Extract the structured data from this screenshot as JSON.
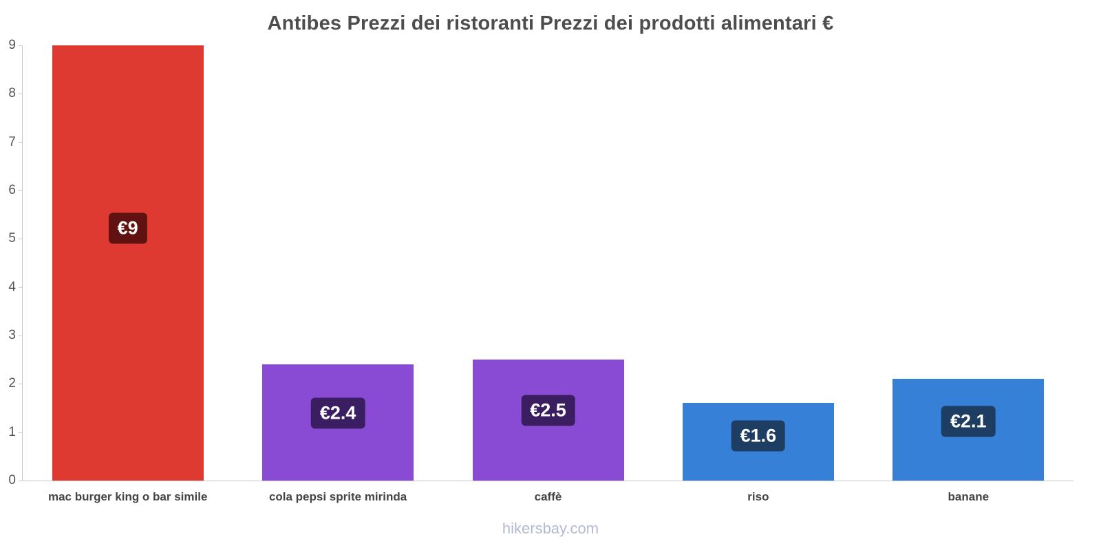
{
  "title": "Antibes Prezzi dei ristoranti Prezzi dei prodotti alimentari €",
  "footer": "hikersbay.com",
  "chart_data": {
    "type": "bar",
    "title": "Antibes Prezzi dei ristoranti Prezzi dei prodotti alimentari €",
    "categories": [
      "mac burger king o bar simile",
      "cola pepsi sprite mirinda",
      "caffè",
      "riso",
      "banane"
    ],
    "values": [
      9,
      2.4,
      2.5,
      1.6,
      2.1
    ],
    "value_labels": [
      "€9",
      "€2.4",
      "€2.5",
      "€1.6",
      "€2.1"
    ],
    "bar_colors": [
      "#df3a32",
      "#8a4bd4",
      "#8a4bd4",
      "#3680d8",
      "#3680d8"
    ],
    "label_bg_colors": [
      "#5f1210",
      "#3b1e61",
      "#3b1e61",
      "#1e3d63",
      "#1e3d63"
    ],
    "xlabel": "",
    "ylabel": "",
    "ylim": [
      0,
      9
    ],
    "yticks": [
      0,
      1,
      2,
      3,
      4,
      5,
      6,
      7,
      8,
      9
    ],
    "grid": "off",
    "legend": "none",
    "currency": "€"
  }
}
